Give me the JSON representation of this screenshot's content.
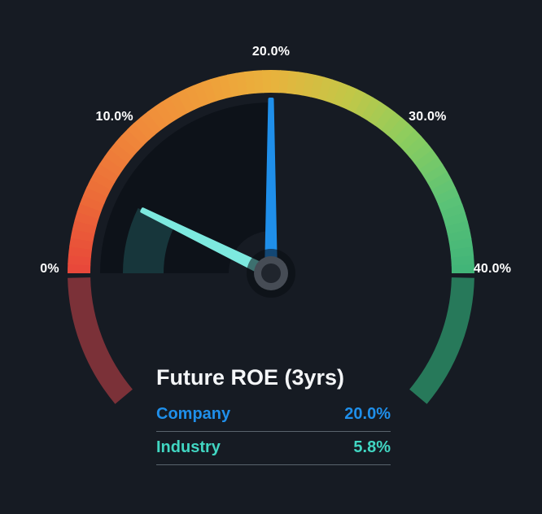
{
  "chart_data": {
    "type": "gauge",
    "title": "Future ROE (3yrs)",
    "min": 0,
    "max": 40,
    "unit": "%",
    "ticks": [
      {
        "value": 0,
        "label": "0%"
      },
      {
        "value": 10,
        "label": "10.0%"
      },
      {
        "value": 20,
        "label": "20.0%"
      },
      {
        "value": 30,
        "label": "30.0%"
      },
      {
        "value": 40,
        "label": "40.0%"
      }
    ],
    "series": [
      {
        "name": "Company",
        "value": 20.0,
        "display": "20.0%",
        "color": "#1f8fea",
        "needle_color": "#1f8fea",
        "band_color": "#0d1219"
      },
      {
        "name": "Industry",
        "value": 5.8,
        "display": "5.8%",
        "color": "#41d6c2",
        "needle_color": "#7de9df",
        "band_color": "#17363b"
      }
    ],
    "arc_color_stops": [
      [
        0.0,
        "#e8463a"
      ],
      [
        0.13,
        "#ec6c38"
      ],
      [
        0.27,
        "#f08b3a"
      ],
      [
        0.4,
        "#efa03a"
      ],
      [
        0.5,
        "#e9b23c"
      ],
      [
        0.63,
        "#c3c747"
      ],
      [
        0.75,
        "#8ccd5e"
      ],
      [
        0.88,
        "#5ac277"
      ],
      [
        1.0,
        "#41b478"
      ]
    ],
    "muted_left_color": "#7b3138",
    "muted_right_color": "#27795a",
    "colors": {
      "background": "#161b23",
      "tick_label": "#ffffff",
      "title": "#f4f6f8",
      "divider": "#59636d",
      "hub_ring": "#464c55",
      "hub_center": "#20252d"
    }
  }
}
